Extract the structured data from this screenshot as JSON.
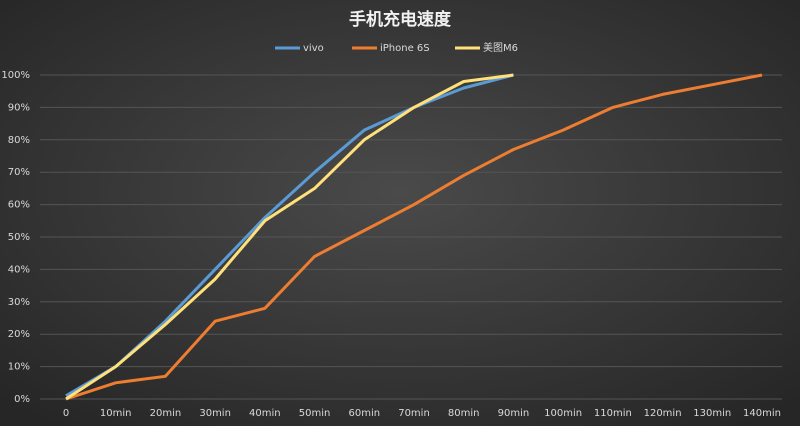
{
  "chart_data": {
    "type": "line",
    "title": "手机充电速度",
    "categories": [
      "0",
      "10min",
      "20min",
      "30min",
      "40min",
      "50min",
      "60min",
      "70min",
      "80min",
      "90min",
      "100min",
      "110min",
      "120min",
      "130min",
      "140min"
    ],
    "series": [
      {
        "name": "vivo",
        "color": "#5b9bd5",
        "values": [
          1,
          10,
          24,
          40,
          56,
          70,
          83,
          90,
          96,
          100,
          null,
          null,
          null,
          null,
          null
        ]
      },
      {
        "name": "iPhone 6S",
        "color": "#ed7d31",
        "values": [
          0,
          5,
          7,
          24,
          28,
          44,
          52,
          60,
          69,
          77,
          83,
          90,
          94,
          97,
          100
        ]
      },
      {
        "name": "美图M6",
        "color": "#ffe07a",
        "values": [
          0,
          10,
          23,
          37,
          55,
          65,
          80,
          90,
          98,
          100,
          null,
          null,
          null,
          null,
          null
        ]
      }
    ],
    "ylim": [
      0,
      100
    ],
    "yticks": [
      {
        "value": 0,
        "label": "0%"
      },
      {
        "value": 10,
        "label": "10%"
      },
      {
        "value": 20,
        "label": "20%"
      },
      {
        "value": 30,
        "label": "30%"
      },
      {
        "value": 40,
        "label": "40%"
      },
      {
        "value": 50,
        "label": "50%"
      },
      {
        "value": 60,
        "label": "60%"
      },
      {
        "value": 70,
        "label": "70%"
      },
      {
        "value": 80,
        "label": "80%"
      },
      {
        "value": 90,
        "label": "90%"
      },
      {
        "value": 100,
        "label": "100%"
      }
    ],
    "grid": true,
    "legend": "top"
  }
}
